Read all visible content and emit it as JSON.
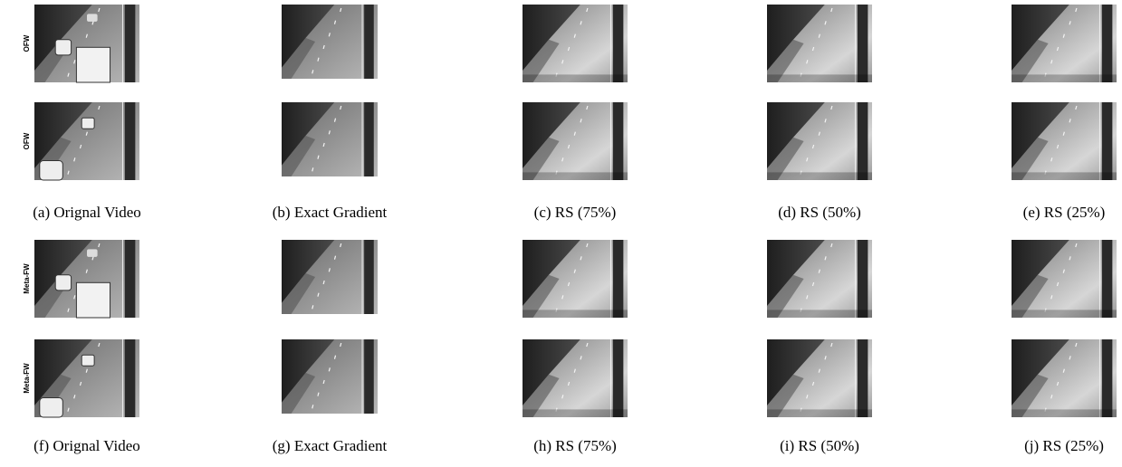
{
  "groups": [
    {
      "row_label": "OFW",
      "captions": [
        "(a) Orignal Video",
        "(b) Exact Gradient",
        "(c) RS (75%)",
        "(d) RS (50%)",
        "(e) RS (25%)"
      ]
    },
    {
      "row_label": "Meta-FW",
      "captions": [
        "(f) Orignal Video",
        "(g) Exact Gradient",
        "(h) RS (75%)",
        "(i) RS (50%)",
        "(j) RS (25%)"
      ]
    }
  ]
}
